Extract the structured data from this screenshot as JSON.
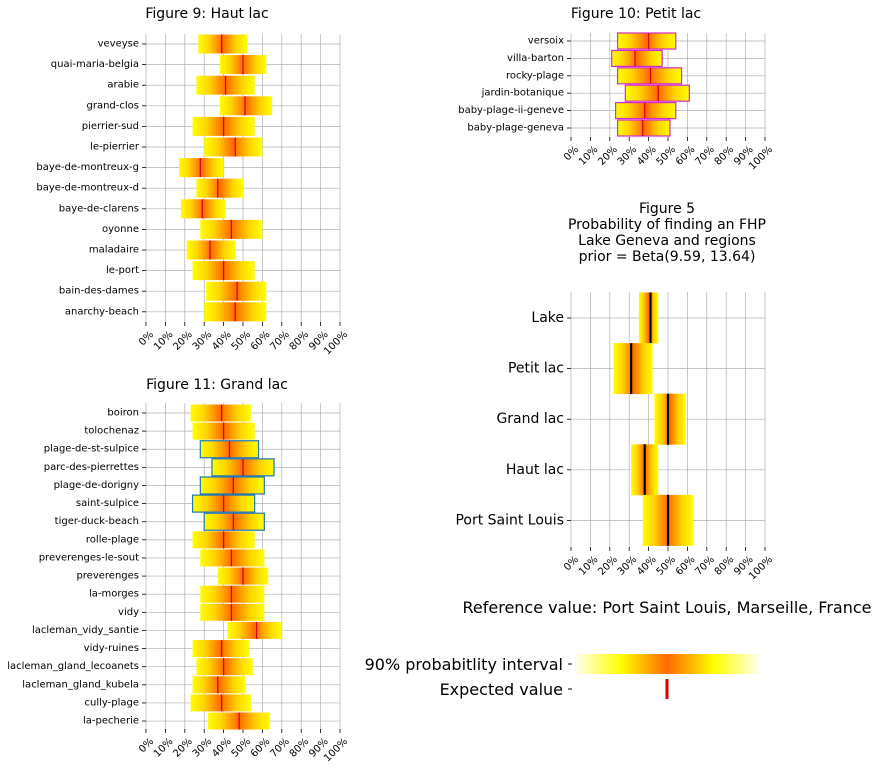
{
  "tick_labels": [
    "0%",
    "10%",
    "20%",
    "30%",
    "40%",
    "50%",
    "60%",
    "70%",
    "80%",
    "90%",
    "100%"
  ],
  "colors": {
    "grid": "#b0b0b0",
    "mean_line": "#e00000",
    "mean_line_summary": "#000000",
    "edge_grand_lac": "#1f77b4",
    "edge_petit_lac": "#d62ad0",
    "grad_low": "#ffff00",
    "grad_mid": "#ff6a00"
  },
  "chart_data": [
    {
      "id": "fig9",
      "type": "bar",
      "title": "Figure 9: Haut lac",
      "xlim": [
        0,
        100
      ],
      "categories": [
        "veveyse",
        "quai-maria-belgia",
        "arabie",
        "grand-clos",
        "pierrier-sud",
        "le-pierrier",
        "baye-de-montreux-g",
        "baye-de-montreux-d",
        "baye-de-clarens",
        "oyonne",
        "maladaire",
        "le-port",
        "bain-des-dames",
        "anarchy-beach"
      ],
      "low": [
        27,
        38,
        26,
        38,
        24,
        30,
        17,
        26,
        18,
        28,
        21,
        24,
        31,
        30
      ],
      "high": [
        52,
        62,
        56,
        65,
        56,
        60,
        40,
        50,
        41,
        60,
        46,
        56,
        62,
        62
      ],
      "mean": [
        39,
        50,
        41,
        51,
        40,
        46,
        28,
        37,
        29,
        44,
        33,
        40,
        47,
        46
      ],
      "edge": []
    },
    {
      "id": "fig10",
      "type": "bar",
      "title": "Figure 10: Petit lac",
      "xlim": [
        0,
        100
      ],
      "categories": [
        "versoix",
        "villa-barton",
        "rocky-plage",
        "jardin-botanique",
        "baby-plage-ii-geneve",
        "baby-plage-geneva"
      ],
      "low": [
        24,
        21,
        24,
        28,
        23,
        24
      ],
      "high": [
        54,
        47,
        57,
        61,
        54,
        51
      ],
      "mean": [
        40,
        33,
        41,
        45,
        38,
        37
      ],
      "edge": [
        0,
        1,
        2,
        3,
        4,
        5
      ]
    },
    {
      "id": "fig11",
      "type": "bar",
      "title": "Figure 11: Grand lac",
      "xlim": [
        0,
        100
      ],
      "categories": [
        "boiron",
        "tolochenaz",
        "plage-de-st-sulpice",
        "parc-des-pierrettes",
        "plage-de-dorigny",
        "saint-sulpice",
        "tiger-duck-beach",
        "rolle-plage",
        "preverenges-le-sout",
        "preverenges",
        "la-morges",
        "vidy",
        "lacleman_vidy_santie",
        "vidy-ruines",
        "lacleman_gland_lecoanets",
        "lacleman_gland_kubela",
        "cully-plage",
        "la-pecherie"
      ],
      "low": [
        23,
        24,
        28,
        34,
        28,
        24,
        30,
        24,
        28,
        37,
        28,
        28,
        42,
        24,
        26,
        24,
        23,
        32
      ],
      "high": [
        54,
        56,
        58,
        66,
        61,
        56,
        61,
        56,
        61,
        63,
        61,
        61,
        70,
        53,
        55,
        51,
        54,
        64
      ],
      "mean": [
        39,
        40,
        43,
        50,
        45,
        40,
        45,
        40,
        44,
        50,
        44,
        44,
        57,
        39,
        40,
        37,
        39,
        48
      ],
      "edge": [
        2,
        3,
        4,
        5,
        6
      ]
    },
    {
      "id": "fig5",
      "type": "bar",
      "title": "Figure 5\nProbability of finding an FHP\nLake Geneva and regions\nprior = Beta(9.59, 13.64)",
      "xlim": [
        0,
        100
      ],
      "categories": [
        "Lake",
        "Petit lac",
        "Grand lac",
        "Haut lac",
        "Port Saint Louis"
      ],
      "low": [
        35,
        22,
        43,
        31,
        37
      ],
      "high": [
        45,
        42,
        59,
        45,
        63
      ],
      "mean": [
        41,
        31,
        50,
        38,
        50
      ],
      "edge": []
    }
  ],
  "legend": {
    "title": "Reference value: Port Saint Louis, Marseille, France",
    "interval_label": "90% probabitlity interval",
    "expected_label": "Expected value"
  }
}
